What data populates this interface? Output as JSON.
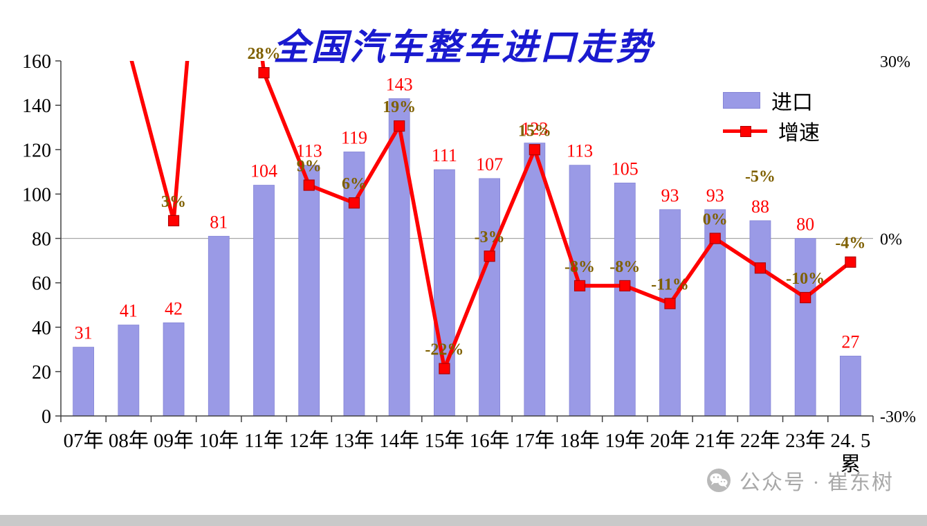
{
  "page": {
    "watermark_text": "公众号 · 崔东树"
  },
  "legend": {
    "items": [
      {
        "label": "进口",
        "swatch": "bar"
      },
      {
        "label": "增速",
        "swatch": "line-marker"
      }
    ]
  },
  "colors": {
    "bar": "#9A9AE6",
    "bar_border": "#8585D6",
    "line": "#FF0000",
    "marker_border": "#B00000",
    "bar_label": "#FF0000",
    "growth_label": "#7F6000",
    "title": "#1A1ACF",
    "axis_line": "#404040",
    "axis_text": "#000000",
    "gridline": "#A8A8A8",
    "watermark": "#A8A8A8",
    "bottom_strip": "#C9C9C9"
  },
  "chart_data": {
    "type": "bar+line",
    "title": "全国汽车整车进口走势",
    "categories": [
      "07年",
      "08年",
      "09年",
      "10年",
      "11年",
      "12年",
      "13年",
      "14年",
      "15年",
      "16年",
      "17年",
      "18年",
      "19年",
      "20年",
      "21年",
      "22年",
      "23年",
      "24. 5\n累"
    ],
    "series": [
      {
        "name": "进口",
        "type": "bar",
        "axis": "left",
        "values": [
          31,
          41,
          42,
          81,
          104,
          113,
          119,
          143,
          111,
          107,
          123,
          113,
          105,
          93,
          93,
          88,
          80,
          27
        ],
        "labels": [
          "31",
          "41",
          "42",
          "81",
          "104",
          "113",
          "119",
          "143",
          "111",
          "107",
          "123",
          "113",
          "105",
          "93",
          "93",
          "88",
          "80",
          "27"
        ]
      },
      {
        "name": "增速",
        "type": "line",
        "axis": "right",
        "values": [
          null,
          null,
          3,
          null,
          28,
          9,
          6,
          19,
          -22,
          -3,
          15,
          -8,
          -8,
          -11,
          0,
          -5,
          -10,
          -4
        ],
        "labels": [
          "",
          "",
          "3%",
          "",
          "28%",
          "9%",
          "6%",
          "19%",
          "-22%",
          "-3%",
          "15%",
          "-8%",
          "-8%",
          "-11%",
          "0%",
          "-5%",
          "-10%",
          "-4%"
        ]
      }
    ],
    "left_axis": {
      "min": 0,
      "max": 160,
      "step": 20,
      "tick_labels": [
        "0",
        "20",
        "40",
        "60",
        "80",
        "100",
        "120",
        "140",
        "160"
      ]
    },
    "right_axis": {
      "ticks": [
        30,
        0,
        -30
      ],
      "tick_labels": [
        "30%",
        "0%",
        "-30%"
      ]
    },
    "gridline_left_value": 80,
    "grid": "single horizontal line at 0% / 80",
    "legend_position": "top-right",
    "render_hints": {
      "offchart_pct": {
        "0": 35,
        "1": 32,
        "3": 93
      },
      "growth_label_dy": {
        "15": -105
      }
    }
  }
}
